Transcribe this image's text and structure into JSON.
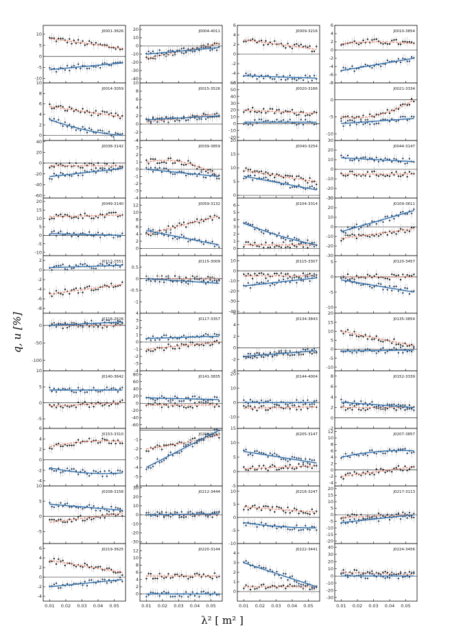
{
  "figure": {
    "ylabel": "q, u [%]",
    "xlabel": "λ² [ m² ]",
    "x_ticks": [
      "0.01",
      "0.02",
      "0.03",
      "0.04",
      "0.05"
    ],
    "colors": {
      "u_series": "#2e6da8",
      "q_model": "#e8826a",
      "points": "#1a1a1a",
      "errorbars": "#b8b8b8",
      "zero_line": "#000000"
    }
  },
  "chart_data": [
    {
      "type": "scatter",
      "title": "J0001-3626",
      "ylim": [
        -12,
        14
      ],
      "yticks": [
        10,
        5,
        0,
        -5,
        -10
      ],
      "series": [
        {
          "name": "",
          "poly": [
            8,
            -4,
            -0.5
          ]
        },
        {
          "name": "",
          "poly": [
            -6,
            3,
            0
          ]
        }
      ]
    },
    {
      "type": "scatter",
      "title": "J0004-4011",
      "ylim": [
        -45,
        25
      ],
      "yticks": [
        20,
        10,
        0,
        -10,
        -20,
        -30,
        -40
      ],
      "series": [
        {
          "name": "",
          "poly": [
            -15,
            18,
            0
          ]
        },
        {
          "name": "",
          "poly": [
            -10,
            8,
            0
          ]
        }
      ]
    },
    {
      "type": "scatter",
      "title": "J0009-3216",
      "ylim": [
        -6,
        6
      ],
      "yticks": [
        6,
        4,
        2,
        0,
        -2,
        -4,
        -6
      ],
      "series": [
        {
          "name": "",
          "poly": [
            3,
            -2,
            0
          ]
        },
        {
          "name": "",
          "poly": [
            -4.5,
            -0.5,
            0
          ]
        }
      ]
    },
    {
      "type": "scatter",
      "title": "J0010-3854",
      "ylim": [
        -8,
        6
      ],
      "yticks": [
        6,
        4,
        2,
        0,
        -2,
        -4,
        -6,
        -8
      ],
      "series": [
        {
          "name": "",
          "poly": [
            1.5,
            2,
            -2
          ]
        },
        {
          "name": "",
          "poly": [
            -5,
            3,
            0
          ]
        }
      ]
    },
    {
      "type": "scatter",
      "title": "J0014-3059",
      "ylim": [
        -1,
        10
      ],
      "yticks": [
        10,
        8,
        6,
        4,
        2,
        0
      ],
      "series": [
        {
          "name": "",
          "poly": [
            5.5,
            -2,
            0
          ]
        },
        {
          "name": "",
          "poly": [
            3,
            -5,
            2
          ]
        }
      ]
    },
    {
      "type": "scatter",
      "title": "J0015-3526",
      "ylim": [
        -4,
        10
      ],
      "yticks": [
        10,
        8,
        6,
        4,
        2,
        0,
        -2,
        -4
      ],
      "series": [
        {
          "name": "",
          "poly": [
            0.5,
            2,
            0
          ]
        },
        {
          "name": "",
          "poly": [
            1,
            1,
            0
          ]
        }
      ]
    },
    {
      "type": "scatter",
      "title": "J0020-3166",
      "ylim": [
        -25,
        60
      ],
      "yticks": [
        60,
        50,
        40,
        30,
        20,
        10,
        0,
        -10,
        -20
      ],
      "series": [
        {
          "name": "",
          "poly": [
            20,
            -5,
            0
          ]
        },
        {
          "name": "",
          "poly": [
            2,
            0,
            0
          ]
        }
      ]
    },
    {
      "type": "scatter",
      "title": "J0021-3334",
      "ylim": [
        -12,
        5
      ],
      "yticks": [
        0,
        -5,
        -10
      ],
      "series": [
        {
          "name": "",
          "poly": [
            -5,
            -3,
            8
          ]
        },
        {
          "name": "",
          "poly": [
            -7,
            1.5,
            0
          ]
        }
      ]
    },
    {
      "type": "scatter",
      "title": "J0038-3142",
      "ylim": [
        -65,
        42
      ],
      "yticks": [
        40,
        20,
        0,
        -20,
        -40,
        -60
      ],
      "series": [
        {
          "name": "",
          "poly": [
            -5,
            0,
            0
          ]
        },
        {
          "name": "",
          "poly": [
            -25,
            15,
            0
          ]
        }
      ]
    },
    {
      "type": "scatter",
      "title": "J0039-3859",
      "ylim": [
        -4,
        4
      ],
      "yticks": [
        4,
        3,
        2,
        1,
        0,
        -1,
        -2,
        -3,
        -4
      ],
      "series": [
        {
          "name": "",
          "poly": [
            1,
            2,
            -4
          ]
        },
        {
          "name": "",
          "poly": [
            0,
            -1,
            0
          ]
        }
      ]
    },
    {
      "type": "scatter",
      "title": "J0040-3254",
      "ylim": [
        -1,
        20
      ],
      "yticks": [
        20,
        15,
        10,
        5,
        0
      ],
      "series": [
        {
          "name": "",
          "poly": [
            9,
            -4,
            0
          ]
        },
        {
          "name": "",
          "poly": [
            7,
            -5,
            0
          ]
        }
      ]
    },
    {
      "type": "scatter",
      "title": "J0044-3147",
      "ylim": [
        -30,
        30
      ],
      "yticks": [
        30,
        20,
        10,
        0,
        -10,
        -20,
        -30
      ],
      "series": [
        {
          "name": "",
          "poly": [
            -5,
            0,
            0
          ]
        },
        {
          "name": "",
          "poly": [
            12,
            -4,
            0
          ]
        }
      ]
    },
    {
      "type": "scatter",
      "title": "J0049-3140",
      "ylim": [
        -12,
        22
      ],
      "yticks": [
        20,
        15,
        10,
        5,
        0,
        -5,
        -10
      ],
      "series": [
        {
          "name": "",
          "poly": [
            11,
            1,
            0
          ]
        },
        {
          "name": "",
          "poly": [
            1,
            -1,
            0
          ]
        }
      ]
    },
    {
      "type": "scatter",
      "title": "J0059-3132",
      "ylim": [
        -2,
        14
      ],
      "yticks": [
        12,
        10,
        8,
        6,
        4,
        2,
        0
      ],
      "series": [
        {
          "name": "",
          "poly": [
            4,
            5,
            0
          ]
        },
        {
          "name": "",
          "poly": [
            5,
            -4,
            0
          ]
        }
      ]
    },
    {
      "type": "scatter",
      "title": "J0104-3314",
      "ylim": [
        -1,
        7
      ],
      "yticks": [
        6,
        5,
        4,
        3,
        2,
        1,
        0
      ],
      "series": [
        {
          "name": "",
          "poly": [
            0.5,
            0,
            0
          ]
        },
        {
          "name": "",
          "poly": [
            3.5,
            -4,
            1
          ]
        }
      ]
    },
    {
      "type": "scatter",
      "title": "J0109-3611",
      "ylim": [
        -30,
        30
      ],
      "yticks": [
        30,
        20,
        10,
        0,
        -10,
        -20,
        -30
      ],
      "series": [
        {
          "name": "",
          "poly": [
            -12,
            10,
            0
          ]
        },
        {
          "name": "",
          "poly": [
            -5,
            22,
            0
          ]
        }
      ]
    },
    {
      "type": "scatter",
      "title": "J0112-3551",
      "ylim": [
        -9,
        3
      ],
      "yticks": [
        2,
        0,
        -2,
        -4,
        -6,
        -8
      ],
      "series": [
        {
          "name": "",
          "poly": [
            -5,
            2,
            0
          ]
        },
        {
          "name": "",
          "poly": [
            0.5,
            0.5,
            0
          ]
        }
      ]
    },
    {
      "type": "scatter",
      "title": "J0115-3009",
      "ylim": [
        -1.5,
        1
      ],
      "yticks": [
        0.5,
        0,
        -0.5,
        -1
      ],
      "series": [
        {
          "name": "",
          "poly": [
            0,
            0,
            0
          ]
        },
        {
          "name": "",
          "poly": [
            0,
            -0.2,
            0
          ]
        }
      ]
    },
    {
      "type": "scatter",
      "title": "J0115-3307",
      "ylim": [
        -42,
        15
      ],
      "yticks": [
        10,
        0,
        -10,
        -20,
        -30,
        -40
      ],
      "series": [
        {
          "name": "",
          "poly": [
            -5,
            0,
            0
          ]
        },
        {
          "name": "",
          "poly": [
            -15,
            8,
            0
          ]
        }
      ]
    },
    {
      "type": "scatter",
      "title": "J0120-3457",
      "ylim": [
        -12,
        7
      ],
      "yticks": [
        5,
        0,
        -5,
        -10
      ],
      "series": [
        {
          "name": "",
          "poly": [
            0,
            0,
            0
          ]
        },
        {
          "name": "",
          "poly": [
            -1,
            -4,
            0
          ]
        }
      ]
    },
    {
      "type": "scatter",
      "title": "J0116-2626",
      "ylim": [
        -130,
        35
      ],
      "yticks": [
        0,
        -50,
        -100
      ],
      "series": [
        {
          "name": "",
          "poly": [
            0,
            0,
            0
          ]
        },
        {
          "name": "",
          "poly": [
            0,
            10,
            0
          ]
        }
      ]
    },
    {
      "type": "scatter",
      "title": "J0117-3357",
      "ylim": [
        -4,
        4
      ],
      "yticks": [
        4,
        3,
        2,
        1,
        0,
        -1,
        -2,
        -3,
        -4
      ],
      "series": [
        {
          "name": "",
          "poly": [
            -1,
            1,
            0
          ]
        },
        {
          "name": "",
          "poly": [
            0.5,
            0.3,
            0
          ]
        }
      ]
    },
    {
      "type": "scatter",
      "title": "J0134-3843",
      "ylim": [
        -4,
        6
      ],
      "yticks": [
        6,
        4,
        2,
        0,
        -2,
        -4
      ],
      "series": [
        {
          "name": "",
          "poly": [
            -1.5,
            1,
            0
          ]
        },
        {
          "name": "",
          "poly": [
            -1.5,
            1,
            0
          ]
        }
      ]
    },
    {
      "type": "scatter",
      "title": "J0135-3854",
      "ylim": [
        -12,
        20
      ],
      "yticks": [
        20,
        15,
        10,
        5,
        0,
        -5,
        -10
      ],
      "series": [
        {
          "name": "",
          "poly": [
            10,
            -8,
            0
          ]
        },
        {
          "name": "",
          "poly": [
            -1,
            0.5,
            0
          ]
        }
      ]
    },
    {
      "type": "scatter",
      "title": "J0140-3642",
      "ylim": [
        -8,
        10
      ],
      "yticks": [
        10,
        5,
        0,
        -5
      ],
      "series": [
        {
          "name": "",
          "poly": [
            -1,
            1,
            0
          ]
        },
        {
          "name": "",
          "poly": [
            4,
            0,
            0
          ]
        }
      ]
    },
    {
      "type": "scatter",
      "title": "J0141-3835",
      "ylim": [
        -70,
        90
      ],
      "yticks": [
        80,
        60,
        40,
        20,
        0,
        -20,
        -40,
        -60
      ],
      "series": [
        {
          "name": "",
          "poly": [
            -5,
            0,
            0
          ]
        },
        {
          "name": "",
          "poly": [
            15,
            -5,
            0
          ]
        }
      ]
    },
    {
      "type": "scatter",
      "title": "J0144-4004",
      "ylim": [
        -18,
        22
      ],
      "yticks": [
        20,
        10,
        0,
        -10
      ],
      "series": [
        {
          "name": "",
          "poly": [
            -4,
            1,
            0
          ]
        },
        {
          "name": "",
          "poly": [
            0,
            0,
            0
          ]
        }
      ]
    },
    {
      "type": "scatter",
      "title": "J0152-3339",
      "ylim": [
        -2,
        9
      ],
      "yticks": [
        8,
        6,
        4,
        2,
        0,
        -2
      ],
      "series": [
        {
          "name": "",
          "poly": [
            2,
            0,
            0
          ]
        },
        {
          "name": "",
          "poly": [
            3,
            -1,
            0
          ]
        }
      ]
    },
    {
      "type": "scatter",
      "title": "J0153-3310",
      "ylim": [
        -5,
        6
      ],
      "yticks": [
        6,
        4,
        2,
        0,
        -2,
        -4
      ],
      "series": [
        {
          "name": "",
          "poly": [
            2.5,
            3,
            -2
          ]
        },
        {
          "name": "",
          "poly": [
            -1.5,
            -3,
            2
          ]
        }
      ]
    },
    {
      "type": "scatter",
      "title": "J0200-3053",
      "ylim": [
        -6,
        0.2
      ],
      "yticks": [
        -1,
        -2,
        -3,
        -4,
        -5,
        -6
      ],
      "series": [
        {
          "name": "",
          "poly": [
            -2,
            1,
            0.5
          ]
        },
        {
          "name": "",
          "poly": [
            -4,
            4,
            0
          ]
        }
      ]
    },
    {
      "type": "scatter",
      "title": "J0205-3147",
      "ylim": [
        -5,
        15
      ],
      "yticks": [
        15,
        10,
        5,
        0,
        -5
      ],
      "series": [
        {
          "name": "",
          "poly": [
            1,
            1,
            0
          ]
        },
        {
          "name": "",
          "poly": [
            7,
            -4,
            0
          ]
        }
      ]
    },
    {
      "type": "scatter",
      "title": "J0207-3857",
      "ylim": [
        -5,
        13
      ],
      "yticks": [
        12,
        10,
        8,
        6,
        4,
        2,
        0,
        -2,
        -4
      ],
      "series": [
        {
          "name": "",
          "poly": [
            -2,
            3,
            0
          ]
        },
        {
          "name": "",
          "poly": [
            4,
            5,
            -3
          ]
        }
      ]
    },
    {
      "type": "scatter",
      "title": "J0208-3158",
      "ylim": [
        -9,
        10
      ],
      "yticks": [
        10,
        5,
        0,
        -5
      ],
      "series": [
        {
          "name": "",
          "poly": [
            -2,
            3,
            0
          ]
        },
        {
          "name": "",
          "poly": [
            4,
            -2,
            0
          ]
        }
      ]
    },
    {
      "type": "scatter",
      "title": "J0212-3444",
      "ylim": [
        -32,
        32
      ],
      "yticks": [
        30,
        20,
        10,
        0,
        -10,
        -20,
        -30
      ],
      "series": [
        {
          "name": "",
          "poly": [
            0,
            0,
            0
          ]
        },
        {
          "name": "",
          "poly": [
            0,
            1,
            0
          ]
        }
      ]
    },
    {
      "type": "scatter",
      "title": "J0216-3247",
      "ylim": [
        -10,
        12
      ],
      "yticks": [
        10,
        5,
        0,
        -5,
        -10
      ],
      "series": [
        {
          "name": "",
          "poly": [
            4,
            -2,
            0
          ]
        },
        {
          "name": "",
          "poly": [
            -2,
            -4,
            2
          ]
        }
      ]
    },
    {
      "type": "scatter",
      "title": "J0217-3113",
      "ylim": [
        -22,
        22
      ],
      "yticks": [
        20,
        15,
        10,
        5,
        0,
        -5,
        -10,
        -15,
        -20
      ],
      "series": [
        {
          "name": "",
          "poly": [
            -2,
            2,
            0
          ]
        },
        {
          "name": "",
          "poly": [
            -6,
            6,
            0
          ]
        }
      ]
    },
    {
      "type": "scatter",
      "title": "J0219-3625",
      "ylim": [
        -5,
        7
      ],
      "yticks": [
        6,
        4,
        2,
        0,
        -2,
        -4
      ],
      "series": [
        {
          "name": "",
          "poly": [
            3.5,
            -2.5,
            0
          ]
        },
        {
          "name": "",
          "poly": [
            -2,
            1.5,
            0
          ]
        }
      ]
    },
    {
      "type": "scatter",
      "title": "J0220-3144",
      "ylim": [
        -2,
        14
      ],
      "yticks": [
        12,
        10,
        8,
        6,
        4,
        2,
        0
      ],
      "series": [
        {
          "name": "",
          "poly": [
            5,
            0,
            0
          ]
        },
        {
          "name": "",
          "poly": [
            0,
            0,
            0
          ]
        }
      ]
    },
    {
      "type": "scatter",
      "title": "J0222-3441",
      "ylim": [
        -1,
        5
      ],
      "yticks": [
        4,
        3,
        2,
        1,
        0
      ],
      "series": [
        {
          "name": "",
          "poly": [
            0.5,
            0,
            0
          ]
        },
        {
          "name": "",
          "poly": [
            3,
            -2.5,
            0
          ]
        }
      ]
    },
    {
      "type": "scatter",
      "title": "J0224-3456",
      "ylim": [
        -35,
        45
      ],
      "yticks": [
        40,
        30,
        20,
        10,
        0,
        -10,
        -20,
        -30
      ],
      "series": [
        {
          "name": "",
          "poly": [
            5,
            -3,
            0
          ]
        },
        {
          "name": "",
          "poly": [
            0,
            0,
            0
          ]
        }
      ]
    }
  ]
}
